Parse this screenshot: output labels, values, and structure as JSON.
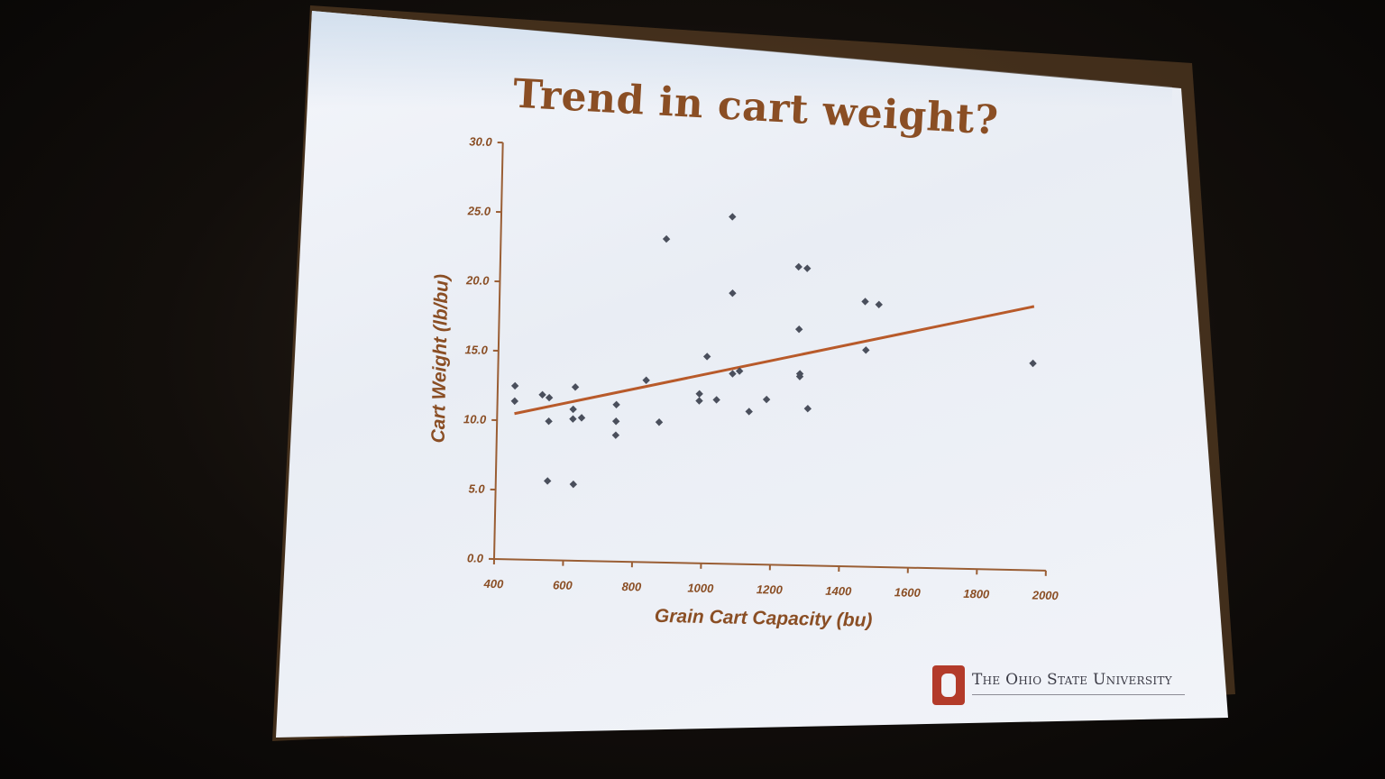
{
  "slide": {
    "title": "Trend in cart weight?",
    "university": "The Ohio State University"
  },
  "colors": {
    "accent": "#8a4e24",
    "trendline": "#b85a2a",
    "points": "#4a4f5c",
    "logo": "#b33b2a"
  },
  "chart_data": {
    "type": "scatter",
    "xlabel": "Grain Cart Capacity (bu)",
    "ylabel": "Cart Weight (lb/bu)",
    "xlim": [
      400,
      2000
    ],
    "ylim": [
      0,
      30
    ],
    "x_ticks": [
      400,
      600,
      800,
      1000,
      1200,
      1400,
      1600,
      1800,
      2000
    ],
    "y_ticks": [
      "0.0",
      "5.0",
      "10.0",
      "15.0",
      "20.0",
      "25.0",
      "30.0"
    ],
    "grid": false,
    "legend": "none",
    "points": [
      {
        "x": 450,
        "y": 12.5
      },
      {
        "x": 450,
        "y": 11.4
      },
      {
        "x": 530,
        "y": 11.9
      },
      {
        "x": 550,
        "y": 11.7
      },
      {
        "x": 550,
        "y": 10.0
      },
      {
        "x": 550,
        "y": 5.7
      },
      {
        "x": 620,
        "y": 10.9
      },
      {
        "x": 620,
        "y": 10.2
      },
      {
        "x": 625,
        "y": 12.5
      },
      {
        "x": 625,
        "y": 5.5
      },
      {
        "x": 645,
        "y": 10.3
      },
      {
        "x": 745,
        "y": 11.3
      },
      {
        "x": 745,
        "y": 10.1
      },
      {
        "x": 745,
        "y": 9.1
      },
      {
        "x": 830,
        "y": 13.1
      },
      {
        "x": 870,
        "y": 10.1
      },
      {
        "x": 880,
        "y": 23.3
      },
      {
        "x": 985,
        "y": 12.2
      },
      {
        "x": 985,
        "y": 11.7
      },
      {
        "x": 1005,
        "y": 14.9
      },
      {
        "x": 1035,
        "y": 11.8
      },
      {
        "x": 1070,
        "y": 25.0
      },
      {
        "x": 1075,
        "y": 19.5
      },
      {
        "x": 1080,
        "y": 13.7
      },
      {
        "x": 1100,
        "y": 13.9
      },
      {
        "x": 1130,
        "y": 11.0
      },
      {
        "x": 1180,
        "y": 11.9
      },
      {
        "x": 1265,
        "y": 21.5
      },
      {
        "x": 1270,
        "y": 17.0
      },
      {
        "x": 1275,
        "y": 13.8
      },
      {
        "x": 1275,
        "y": 13.6
      },
      {
        "x": 1290,
        "y": 21.4
      },
      {
        "x": 1300,
        "y": 11.3
      },
      {
        "x": 1460,
        "y": 19.1
      },
      {
        "x": 1465,
        "y": 15.6
      },
      {
        "x": 1500,
        "y": 18.9
      },
      {
        "x": 1950,
        "y": 14.9
      }
    ],
    "trendline": {
      "x": [
        450,
        1950
      ],
      "y": [
        10.5,
        19.0
      ]
    }
  }
}
